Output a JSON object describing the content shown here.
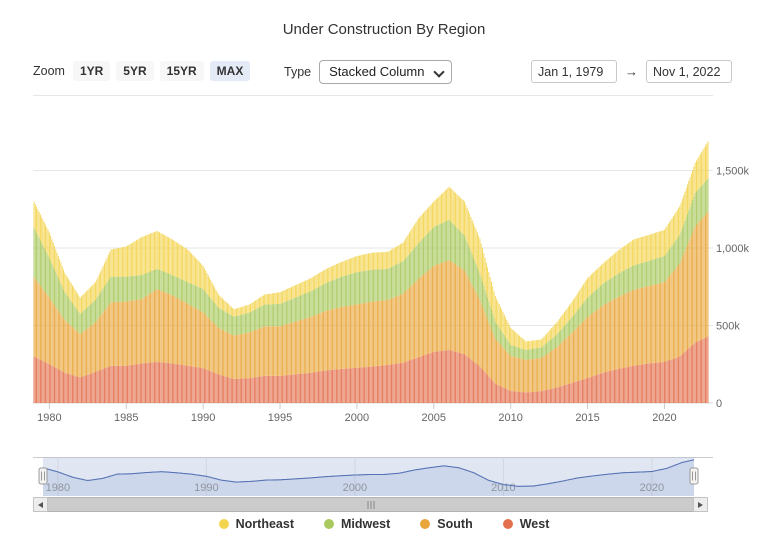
{
  "title": "Under Construction By Region",
  "controls": {
    "zoom_label": "Zoom",
    "zoom_buttons": [
      {
        "label": "1YR",
        "active": false
      },
      {
        "label": "5YR",
        "active": false
      },
      {
        "label": "15YR",
        "active": false
      },
      {
        "label": "MAX",
        "active": true
      }
    ],
    "type_label": "Type",
    "type_value": "Stacked Column",
    "date_from": "Jan 1, 1979",
    "date_to": "Nov 1, 2022",
    "range_arrow": "→",
    "active_button_color": "#e4eaf6"
  },
  "chart_data": {
    "type": "bar",
    "stacked": true,
    "title": "Under Construction By Region",
    "unit": "thousands of housing units",
    "x_unit": "year (monthly bars, Jan 1979 - Nov 2022)",
    "xlim": [
      1979,
      2022.833
    ],
    "ylim": [
      0,
      1800
    ],
    "grid": true,
    "legend_position": "bottom",
    "x": [
      1979,
      1980,
      1981,
      1982,
      1983,
      1984,
      1985,
      1986,
      1987,
      1988,
      1989,
      1990,
      1991,
      1992,
      1993,
      1994,
      1995,
      1996,
      1997,
      1998,
      1999,
      2000,
      2001,
      2002,
      2003,
      2004,
      2005,
      2006,
      2007,
      2008,
      2009,
      2010,
      2011,
      2012,
      2013,
      2014,
      2015,
      2016,
      2017,
      2018,
      2019,
      2020,
      2021,
      2022,
      2022.833
    ],
    "series": [
      {
        "name": "West",
        "color": "#e3714f",
        "values": [
          300,
          250,
          195,
          165,
          200,
          240,
          240,
          255,
          265,
          255,
          240,
          225,
          185,
          155,
          160,
          175,
          175,
          185,
          195,
          210,
          220,
          227,
          235,
          245,
          260,
          295,
          330,
          342,
          315,
          235,
          125,
          78,
          68,
          76,
          100,
          130,
          161,
          195,
          220,
          240,
          255,
          265,
          300,
          390,
          429
        ]
      },
      {
        "name": "South",
        "color": "#e9a63b",
        "values": [
          510,
          430,
          340,
          280,
          320,
          410,
          415,
          415,
          470,
          440,
          400,
          360,
          300,
          280,
          295,
          320,
          320,
          340,
          360,
          385,
          400,
          409,
          420,
          420,
          445,
          505,
          555,
          580,
          540,
          430,
          290,
          225,
          210,
          215,
          260,
          325,
          394,
          435,
          465,
          490,
          500,
          515,
          600,
          750,
          805
        ]
      },
      {
        "name": "Midwest",
        "color": "#a9c95f",
        "values": [
          320,
          255,
          180,
          130,
          145,
          165,
          160,
          155,
          130,
          130,
          140,
          150,
          130,
          122,
          128,
          140,
          145,
          155,
          165,
          180,
          195,
          208,
          205,
          200,
          210,
          230,
          250,
          260,
          225,
          170,
          110,
          72,
          64,
          68,
          82,
          100,
          125,
          140,
          150,
          158,
          162,
          168,
          185,
          215,
          214
        ]
      },
      {
        "name": "Northeast",
        "color": "#f3d44f",
        "values": [
          170,
          165,
          125,
          105,
          115,
          175,
          195,
          245,
          245,
          230,
          210,
          150,
          85,
          48,
          52,
          65,
          75,
          80,
          85,
          90,
          95,
          104,
          110,
          110,
          120,
          160,
          165,
          213,
          220,
          225,
          165,
          110,
          55,
          51,
          78,
          100,
          126,
          130,
          150,
          167,
          168,
          169,
          185,
          195,
          240
        ]
      }
    ],
    "y_ticks": [
      {
        "value": 0,
        "label": "0"
      },
      {
        "value": 500,
        "label": "500k"
      },
      {
        "value": 1000,
        "label": "1,000k"
      },
      {
        "value": 1500,
        "label": "1,500k"
      }
    ],
    "x_ticks": [
      1980,
      1985,
      1990,
      1995,
      2000,
      2005,
      2010,
      2015,
      2020
    ]
  },
  "navigator": {
    "ticks": [
      1980,
      1990,
      2000,
      2010,
      2020
    ],
    "line_color": "#5873b5",
    "mask_color": "rgba(102,133,194,0.20)",
    "area_color": "rgba(102,133,194,0.16)"
  },
  "scrollbar": {
    "left_icon": "scroll-left-arrow",
    "right_icon": "scroll-right-arrow"
  },
  "legend": [
    {
      "label": "Northeast",
      "color": "#f3d44f"
    },
    {
      "label": "Midwest",
      "color": "#a9c95f"
    },
    {
      "label": "South",
      "color": "#e9a63b"
    },
    {
      "label": "West",
      "color": "#e3714f"
    }
  ]
}
